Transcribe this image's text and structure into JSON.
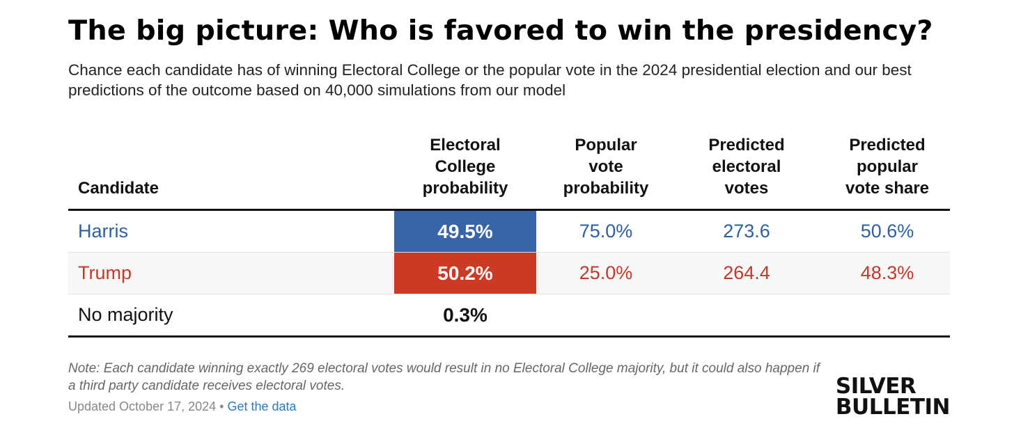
{
  "title": "The big picture: Who is favored to win the presidency?",
  "subtitle": "Chance each candidate has of winning Electoral College or the popular vote in the 2024 presidential election and our best predictions of the outcome based on 40,000 simulations from our model",
  "chart_data": {
    "type": "table",
    "columns": [
      "Candidate",
      "Electoral College probability",
      "Popular vote probability",
      "Predicted electoral votes",
      "Predicted popular vote share"
    ],
    "rows": [
      {
        "candidate": "Harris",
        "ec_prob": "49.5%",
        "pop_prob": "75.0%",
        "ev": "273.6",
        "share": "50.6%",
        "color": "#2e5fa0",
        "fill": "#3864a8"
      },
      {
        "candidate": "Trump",
        "ec_prob": "50.2%",
        "pop_prob": "25.0%",
        "ev": "264.4",
        "share": "48.3%",
        "color": "#c0392b",
        "fill": "#cc3a26"
      },
      {
        "candidate": "No majority",
        "ec_prob": "0.3%",
        "pop_prob": "",
        "ev": "",
        "share": ""
      }
    ]
  },
  "note": "Note: Each candidate winning exactly 269 electoral votes would result in no Electoral College majority, but it could also happen if a third party candidate receives electoral votes.",
  "updated": "Updated October 17, 2024",
  "separator": "•",
  "get_data": "Get the data",
  "logo": {
    "line1": "SILVER",
    "line2": "BULLETIN"
  }
}
